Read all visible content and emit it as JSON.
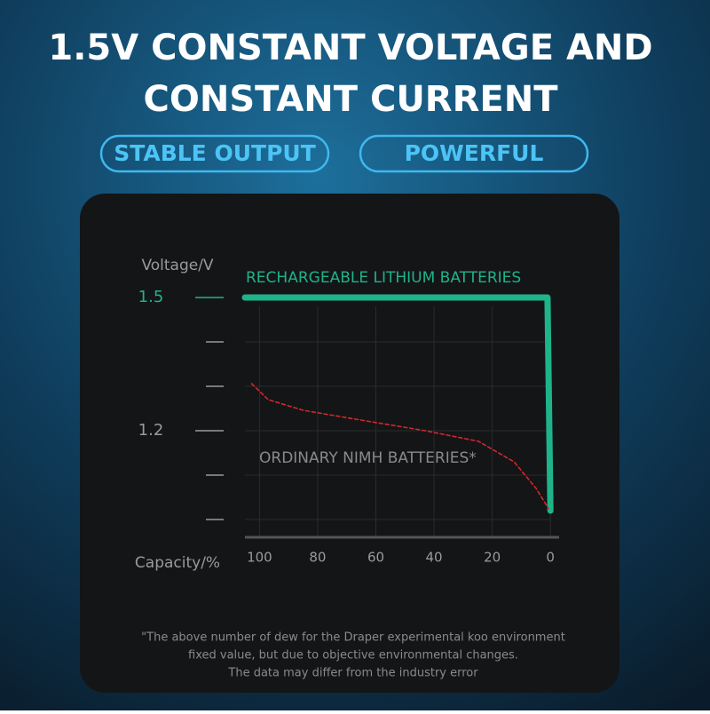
{
  "header": {
    "title_lines": [
      "1.5V CONSTANT VOLTAGE AND",
      "CONSTANT CURRENT"
    ],
    "badges": [
      "STABLE OUTPUT",
      "POWERFUL"
    ]
  },
  "chart_data": {
    "type": "line",
    "y_axis_label": "Voltage/V",
    "x_axis_label": "Capacity/%",
    "xlim": [
      105,
      -3
    ],
    "xticks": [
      100,
      80,
      60,
      40,
      20,
      0
    ],
    "ylim": [
      0.96,
      1.57
    ],
    "yticks": [
      1.5,
      {
        "value": 1.4,
        "label": null
      },
      {
        "value": 1.3,
        "label": null
      },
      1.2,
      {
        "value": 1.1,
        "label": null
      },
      {
        "value": 1.0,
        "label": null
      }
    ],
    "grid": true,
    "series": [
      {
        "name": "RECHARGEABLE LITHIUM BATTERIES",
        "color": "#1fb38a",
        "x": [
          105,
          1,
          0
        ],
        "values": [
          1.5,
          1.5,
          1.02
        ]
      },
      {
        "name": "ORDINARY NIMH BATTERIES*",
        "color": "#d0282c",
        "dashed": true,
        "x": [
          102.7,
          97,
          85,
          67,
          43,
          24.7,
          12.5,
          4.9,
          0.6
        ],
        "values": [
          1.306,
          1.27,
          1.246,
          1.226,
          1.2,
          1.176,
          1.13,
          1.07,
          1.024
        ]
      }
    ]
  },
  "footnote": [
    "\"The above number of dew for the Draper experimental koo environment",
    "fixed value, but due to objective environmental changes.",
    "The data may differ from the industry error"
  ]
}
